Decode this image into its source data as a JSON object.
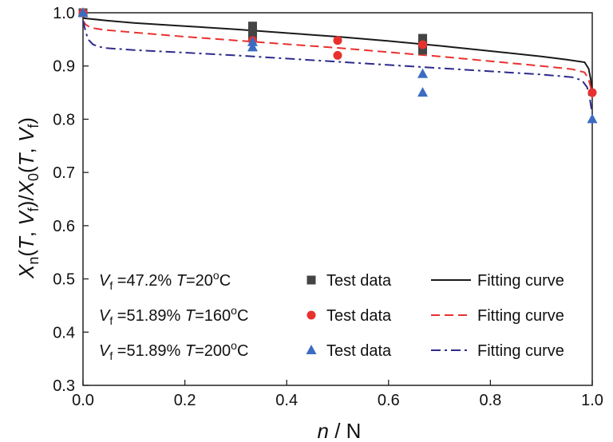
{
  "chart_data": {
    "type": "scatter",
    "xlabel_parts": [
      "n",
      " / N"
    ],
    "ylabel_parts": [
      "X",
      "n",
      "(",
      "T",
      ", ",
      "V",
      "f",
      ")/",
      "X",
      "0",
      "(",
      "T",
      ", ",
      "V",
      "f",
      ")"
    ],
    "xlim": [
      0.0,
      1.0
    ],
    "ylim": [
      0.3,
      1.0
    ],
    "x_ticks": [
      "0.0",
      "0.2",
      "0.4",
      "0.6",
      "0.8",
      "1.0"
    ],
    "y_ticks": [
      "0.3",
      "0.4",
      "0.5",
      "0.6",
      "0.7",
      "0.8",
      "0.9",
      "1.0"
    ],
    "grid": false,
    "legend_position": "bottom-left",
    "colors": {
      "black": "#1a1a1a",
      "red": "#e8312f",
      "blue": "#3b5fad",
      "navy": "#2d2a8c"
    },
    "legend_rows": [
      {
        "cond_vf": "V",
        "cond_vf_sub": "f",
        "cond_vf_val": " =47.2%",
        "cond_t": "T",
        "cond_t_val": "=20",
        "cond_t_sup": "o",
        "cond_t_unit": "C",
        "test_label": "Test data",
        "fit_label": "Fitting curve"
      },
      {
        "cond_vf": "V",
        "cond_vf_sub": "f",
        "cond_vf_val": " =51.89%",
        "cond_t": "T",
        "cond_t_val": "=160",
        "cond_t_sup": "o",
        "cond_t_unit": "C",
        "test_label": "Test data",
        "fit_label": "Fitting curve"
      },
      {
        "cond_vf": "V",
        "cond_vf_sub": "f",
        "cond_vf_val": " =51.89%",
        "cond_t": "T",
        "cond_t_val": "=200",
        "cond_t_sup": "o",
        "cond_t_unit": "C",
        "test_label": "Test data",
        "fit_label": "Fitting curve"
      }
    ],
    "series": [
      {
        "marker": "square",
        "color": "#444444",
        "test_points": [
          [
            0.0,
            1.0
          ],
          [
            0.333,
            0.975
          ],
          [
            0.333,
            0.965
          ],
          [
            0.333,
            0.955
          ],
          [
            0.667,
            0.952
          ],
          [
            0.667,
            0.942
          ],
          [
            0.667,
            0.93
          ]
        ],
        "curve_style": "solid",
        "curve_color": "#1a1a1a",
        "curve": [
          [
            0.0,
            0.99
          ],
          [
            0.05,
            0.985
          ],
          [
            0.1,
            0.981
          ],
          [
            0.2,
            0.975
          ],
          [
            0.3,
            0.969
          ],
          [
            0.4,
            0.962
          ],
          [
            0.5,
            0.955
          ],
          [
            0.6,
            0.947
          ],
          [
            0.7,
            0.938
          ],
          [
            0.8,
            0.928
          ],
          [
            0.9,
            0.918
          ],
          [
            0.95,
            0.912
          ],
          [
            0.985,
            0.907
          ],
          [
            0.993,
            0.895
          ],
          [
            0.997,
            0.875
          ],
          [
            1.0,
            0.85
          ]
        ]
      },
      {
        "marker": "circle",
        "color": "#e8312f",
        "test_points": [
          [
            0.0,
            1.0
          ],
          [
            0.333,
            0.948
          ],
          [
            0.5,
            0.948
          ],
          [
            0.5,
            0.92
          ],
          [
            0.667,
            0.94
          ],
          [
            1.0,
            0.85
          ]
        ],
        "curve_style": "dashed",
        "curve_color": "#e8312f",
        "curve": [
          [
            0.0,
            0.985
          ],
          [
            0.005,
            0.978
          ],
          [
            0.015,
            0.972
          ],
          [
            0.04,
            0.968
          ],
          [
            0.1,
            0.963
          ],
          [
            0.2,
            0.955
          ],
          [
            0.3,
            0.948
          ],
          [
            0.4,
            0.941
          ],
          [
            0.5,
            0.934
          ],
          [
            0.6,
            0.926
          ],
          [
            0.7,
            0.918
          ],
          [
            0.8,
            0.909
          ],
          [
            0.9,
            0.9
          ],
          [
            0.96,
            0.894
          ],
          [
            0.985,
            0.888
          ],
          [
            0.993,
            0.875
          ],
          [
            0.997,
            0.86
          ],
          [
            1.0,
            0.84
          ]
        ]
      },
      {
        "marker": "triangle",
        "color": "#3b6cc2",
        "test_points": [
          [
            0.0,
            1.0
          ],
          [
            0.333,
            0.945
          ],
          [
            0.333,
            0.935
          ],
          [
            0.667,
            0.885
          ],
          [
            0.667,
            0.85
          ],
          [
            1.0,
            0.8
          ]
        ],
        "curve_style": "dashdot",
        "curve_color": "#2d2a8c",
        "curve": [
          [
            0.0,
            0.985
          ],
          [
            0.005,
            0.965
          ],
          [
            0.01,
            0.95
          ],
          [
            0.02,
            0.94
          ],
          [
            0.04,
            0.934
          ],
          [
            0.1,
            0.93
          ],
          [
            0.2,
            0.925
          ],
          [
            0.3,
            0.92
          ],
          [
            0.4,
            0.914
          ],
          [
            0.5,
            0.908
          ],
          [
            0.6,
            0.902
          ],
          [
            0.7,
            0.896
          ],
          [
            0.8,
            0.89
          ],
          [
            0.9,
            0.884
          ],
          [
            0.96,
            0.879
          ],
          [
            0.98,
            0.873
          ],
          [
            0.99,
            0.86
          ],
          [
            0.995,
            0.84
          ],
          [
            1.0,
            0.81
          ]
        ]
      }
    ]
  }
}
